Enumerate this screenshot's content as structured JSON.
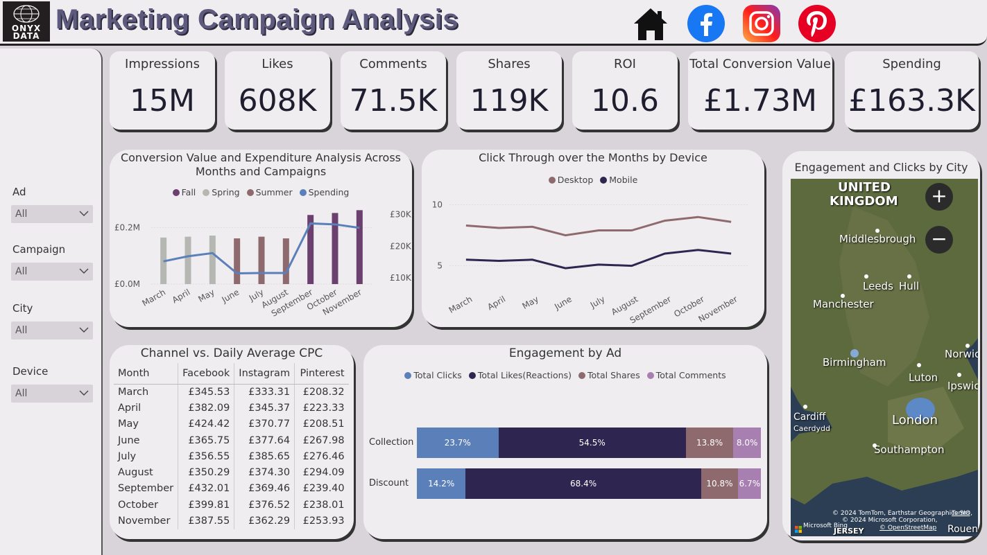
{
  "header": {
    "logo_line1": "ONYX",
    "logo_line2": "DATA",
    "title": "Marketing Campaign Analysis",
    "icons": [
      "home-icon",
      "facebook-icon",
      "instagram-icon",
      "pinterest-icon"
    ]
  },
  "filters": [
    {
      "label": "Ad",
      "value": "All"
    },
    {
      "label": "Campaign",
      "value": "All"
    },
    {
      "label": "City",
      "value": "All"
    },
    {
      "label": "Device",
      "value": "All"
    }
  ],
  "kpis": [
    {
      "label": "Impressions",
      "value": "15M"
    },
    {
      "label": "Likes",
      "value": "608K"
    },
    {
      "label": "Comments",
      "value": "71.5K"
    },
    {
      "label": "Shares",
      "value": "119K"
    },
    {
      "label": "ROI",
      "value": "10.6"
    },
    {
      "label": "Total Conversion Value",
      "value": "£1.73M"
    },
    {
      "label": "Spending",
      "value": "£163.3K"
    }
  ],
  "conversion_chart": {
    "title_line1": "Conversion Value and Expenditure Analysis Across",
    "title_line2": "Months and Campaigns",
    "legend": [
      {
        "name": "Fall",
        "color": "#6b3f6e"
      },
      {
        "name": "Spring",
        "color": "#b5b8b2"
      },
      {
        "name": "Summer",
        "color": "#8e6a6e"
      },
      {
        "name": "Spending",
        "color": "#5b7fb8"
      }
    ],
    "y_left_ticks": [
      "£0.0M",
      "£0.2M"
    ],
    "y_right_ticks": [
      "£10K",
      "£20K",
      "£30K"
    ]
  },
  "click_chart": {
    "title": "Click Through over the Months by Device",
    "legend": [
      {
        "name": "Desktop",
        "color": "#8e6a6e"
      },
      {
        "name": "Mobile",
        "color": "#2e2650"
      }
    ],
    "y_ticks": [
      "5",
      "10"
    ]
  },
  "cpc_table": {
    "title": "Channel vs. Daily Average CPC",
    "headers": [
      "Month",
      "Facebook",
      "Instagram",
      "Pinterest"
    ],
    "rows": [
      [
        "March",
        "£345.53",
        "£333.31",
        "£208.32"
      ],
      [
        "April",
        "£382.09",
        "£345.37",
        "£223.33"
      ],
      [
        "May",
        "£424.42",
        "£370.77",
        "£208.51"
      ],
      [
        "June",
        "£365.75",
        "£377.64",
        "£267.98"
      ],
      [
        "July",
        "£356.55",
        "£385.65",
        "£276.46"
      ],
      [
        "August",
        "£350.29",
        "£374.30",
        "£294.09"
      ],
      [
        "September",
        "£432.01",
        "£369.46",
        "£239.40"
      ],
      [
        "October",
        "£399.81",
        "£376.52",
        "£238.01"
      ],
      [
        "November",
        "£387.55",
        "£362.29",
        "£253.93"
      ]
    ]
  },
  "engagement_chart": {
    "title": "Engagement by Ad",
    "legend": [
      {
        "name": "Total Clicks",
        "color": "#5b7fb8"
      },
      {
        "name": "Total Likes(Reactions)",
        "color": "#2e2650"
      },
      {
        "name": "Total Shares",
        "color": "#8e6a6e"
      },
      {
        "name": "Total Comments",
        "color": "#a77fb0"
      }
    ]
  },
  "map_panel": {
    "title": "Engagement and Clicks by City",
    "country_label_1": "UNITED",
    "country_label_2": "KINGDOM",
    "cities": [
      "Middlesbrough",
      "Leeds",
      "Hull",
      "Manchester",
      "Birmingham",
      "Norwich",
      "Luton",
      "Ipswich",
      "Cardiff",
      "Caerdydd",
      "London",
      "Southampton",
      "Rouen",
      "JERSEY"
    ],
    "zoom_in": "+",
    "zoom_out": "−",
    "attribution": "© 2024 TomTom, Earthstar Geographics SIO,",
    "attribution2": "© 2024 Microsoft Corporation,",
    "osm": "© OpenStreetMap",
    "terms": "Terms",
    "bing": "Microsoft Bing"
  },
  "chart_data": [
    {
      "type": "bar",
      "title": "Conversion Value and Expenditure Analysis Across Months and Campaigns",
      "categories": [
        "March",
        "April",
        "May",
        "June",
        "July",
        "August",
        "September",
        "October",
        "November"
      ],
      "campaigns": [
        "Spring",
        "Spring",
        "Spring",
        "Summer",
        "Summer",
        "Summer",
        "Fall",
        "Fall",
        "Fall"
      ],
      "series": [
        {
          "name": "Conversion Value",
          "axis": "left",
          "values": [
            165000,
            168000,
            172000,
            162000,
            168000,
            162000,
            245000,
            252000,
            262000
          ]
        },
        {
          "name": "Spending",
          "type": "line",
          "axis": "right",
          "values": [
            15200,
            16800,
            17800,
            11400,
            11500,
            11500,
            27200,
            26900,
            25800
          ]
        }
      ],
      "ylim_left": [
        0,
        280000
      ],
      "ylim_right": [
        8000,
        33000
      ]
    },
    {
      "type": "line",
      "title": "Click Through over the Months by Device",
      "x": [
        "March",
        "April",
        "May",
        "June",
        "July",
        "August",
        "September",
        "October",
        "November"
      ],
      "series": [
        {
          "name": "Desktop",
          "values": [
            8.3,
            8.1,
            8.2,
            7.5,
            7.9,
            7.9,
            8.7,
            9.0,
            8.6
          ]
        },
        {
          "name": "Mobile",
          "values": [
            5.5,
            5.4,
            5.5,
            4.8,
            5.1,
            5.0,
            6.0,
            6.3,
            6.0
          ]
        }
      ],
      "ylim": [
        3.5,
        11
      ]
    },
    {
      "type": "bar",
      "orientation": "horizontal-stacked-100",
      "title": "Engagement by Ad",
      "categories": [
        "Collection",
        "Discount"
      ],
      "series": [
        {
          "name": "Total Clicks",
          "values": [
            23.7,
            14.2
          ],
          "labels": [
            "23.7%",
            "14.2%"
          ]
        },
        {
          "name": "Total Likes(Reactions)",
          "values": [
            54.5,
            68.4
          ],
          "labels": [
            "54.5%",
            "68.4%"
          ]
        },
        {
          "name": "Total Shares",
          "values": [
            13.8,
            10.8
          ],
          "labels": [
            "13.8%",
            "10.8%"
          ]
        },
        {
          "name": "Total Comments",
          "values": [
            8.0,
            6.7
          ],
          "labels": [
            "8.0%",
            "6.7%"
          ]
        }
      ]
    }
  ]
}
